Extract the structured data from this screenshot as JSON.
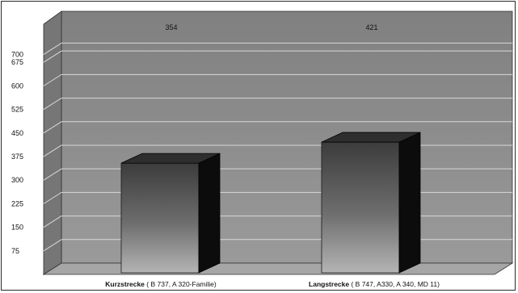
{
  "chart_data": {
    "type": "bar",
    "title": "",
    "xlabel": "",
    "ylabel": "",
    "ylim": [
      0,
      750
    ],
    "yticks": [
      75,
      150,
      225,
      300,
      375,
      450,
      525,
      600,
      675,
      700
    ],
    "categories": [
      {
        "bold": "Kurzstrecke",
        "rest": " ( B 737, A 320-Familie)"
      },
      {
        "bold": "Langstrecke",
        "rest": " ( B 747, A330, A 340, MD 11)"
      }
    ],
    "values": [
      354,
      421
    ],
    "value_labels": [
      "354",
      "421"
    ],
    "grid": true,
    "style": "3d",
    "colors": {
      "wall": "#8f8f8f",
      "floor": "#a6a6a6",
      "bar_top": "#2e2e2e",
      "bar_side": "#0c0c0c"
    }
  }
}
